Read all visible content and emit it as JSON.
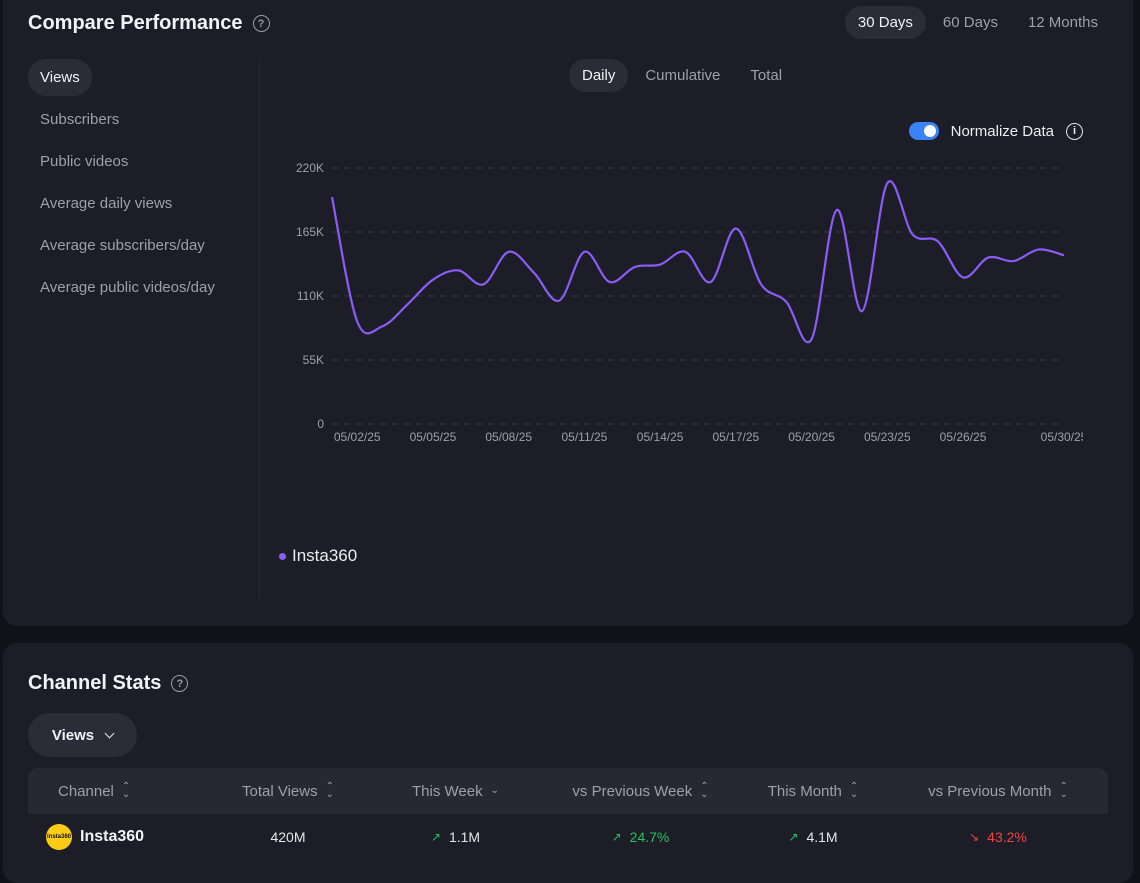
{
  "performance": {
    "title": "Compare Performance",
    "help_icon": "?",
    "ranges": [
      "30 Days",
      "60 Days",
      "12 Months"
    ],
    "active_range": "30 Days",
    "metrics": [
      "Views",
      "Subscribers",
      "Public videos",
      "Average daily views",
      "Average subscribers/day",
      "Average public videos/day"
    ],
    "active_metric": "Views",
    "views": [
      "Daily",
      "Cumulative",
      "Total"
    ],
    "active_view": "Daily",
    "normalize_label": "Normalize Data",
    "normalize_on": true,
    "info_icon": "i",
    "legend": "Insta360"
  },
  "chart_data": {
    "type": "line",
    "x": [
      "05/01/25",
      "05/02/25",
      "05/03/25",
      "05/04/25",
      "05/05/25",
      "05/06/25",
      "05/07/25",
      "05/08/25",
      "05/09/25",
      "05/10/25",
      "05/11/25",
      "05/12/25",
      "05/13/25",
      "05/14/25",
      "05/15/25",
      "05/16/25",
      "05/17/25",
      "05/18/25",
      "05/19/25",
      "05/20/25",
      "05/21/25",
      "05/22/25",
      "05/23/25",
      "05/24/25",
      "05/25/25",
      "05/26/25",
      "05/27/25",
      "05/28/25",
      "05/29/25",
      "05/30/25"
    ],
    "x_ticks": [
      "05/02/25",
      "05/05/25",
      "05/08/25",
      "05/11/25",
      "05/14/25",
      "05/17/25",
      "05/20/25",
      "05/23/25",
      "05/26/25",
      "05/30/25"
    ],
    "series": [
      {
        "name": "Insta360",
        "color": "#8b5cf6",
        "values": [
          195000,
          88000,
          84000,
          103000,
          124000,
          132000,
          120000,
          148000,
          130000,
          106000,
          148000,
          122000,
          135000,
          137000,
          148000,
          122000,
          168000,
          120000,
          105000,
          73000,
          184000,
          97000,
          207000,
          163000,
          157000,
          126000,
          143000,
          140000,
          150000,
          145000
        ]
      }
    ],
    "yticks": [
      "0",
      "55K",
      "110K",
      "165K",
      "220K"
    ],
    "ylim": [
      0,
      220000
    ],
    "grid": true,
    "legend_position": "bottom-left"
  },
  "stats": {
    "title": "Channel Stats",
    "help_icon": "?",
    "select_label": "Views",
    "columns": [
      "Channel",
      "Total Views",
      "This Week",
      "vs Previous Week",
      "This Month",
      "vs Previous Month"
    ],
    "rows": [
      {
        "channel": "Insta360",
        "avatar_text": "insta360",
        "total_views": "420M",
        "this_week": "1.1M",
        "vs_prev_week": "24.7%",
        "this_month": "4.1M",
        "vs_prev_month": "43.2%"
      }
    ]
  }
}
